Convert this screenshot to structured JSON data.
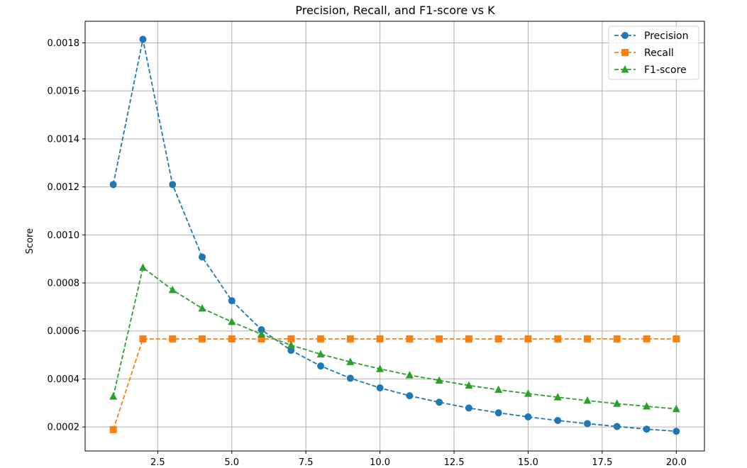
{
  "chart_data": {
    "type": "line",
    "title": "Precision, Recall, and F1-score vs K",
    "xlabel": "",
    "ylabel": "Score",
    "xlim": [
      0.05,
      20.95
    ],
    "ylim": [
      0.0001,
      0.00189
    ],
    "xticks": [
      2.5,
      5.0,
      7.5,
      10.0,
      12.5,
      15.0,
      17.5,
      20.0
    ],
    "xtick_labels": [
      "2.5",
      "5.0",
      "7.5",
      "10.0",
      "12.5",
      "15.0",
      "17.5",
      "20.0"
    ],
    "yticks": [
      0.0002,
      0.0004,
      0.0006,
      0.0008,
      0.001,
      0.0012,
      0.0014,
      0.0016,
      0.0018
    ],
    "ytick_labels": [
      "0.0002",
      "0.0004",
      "0.0006",
      "0.0008",
      "0.0010",
      "0.0012",
      "0.0014",
      "0.0016",
      "0.0018"
    ],
    "grid": true,
    "legend_position": "top-right",
    "x": [
      1,
      2,
      3,
      4,
      5,
      6,
      7,
      8,
      9,
      10,
      11,
      12,
      13,
      14,
      15,
      16,
      17,
      18,
      19,
      20
    ],
    "series": [
      {
        "name": "Precision",
        "color": "#1f77b4",
        "marker": "circle",
        "values": [
          0.00121,
          0.001815,
          0.00121,
          0.000908,
          0.000726,
          0.000605,
          0.000519,
          0.000454,
          0.000403,
          0.000363,
          0.00033,
          0.000303,
          0.000279,
          0.000259,
          0.000242,
          0.000227,
          0.000214,
          0.000202,
          0.000191,
          0.000182
        ]
      },
      {
        "name": "Recall",
        "color": "#ff7f0e",
        "marker": "square",
        "values": [
          0.000189,
          0.000567,
          0.000567,
          0.000567,
          0.000567,
          0.000567,
          0.000567,
          0.000567,
          0.000567,
          0.000567,
          0.000567,
          0.000567,
          0.000567,
          0.000567,
          0.000567,
          0.000567,
          0.000567,
          0.000567,
          0.000567,
          0.000567
        ]
      },
      {
        "name": "F1-score",
        "color": "#2ca02c",
        "marker": "triangle",
        "values": [
          0.000327,
          0.000864,
          0.000771,
          0.000694,
          0.000638,
          0.000586,
          0.000541,
          0.000503,
          0.000471,
          0.000442,
          0.000416,
          0.000394,
          0.000373,
          0.000355,
          0.000339,
          0.000324,
          0.00031,
          0.000297,
          0.000286,
          0.000275
        ]
      }
    ]
  }
}
